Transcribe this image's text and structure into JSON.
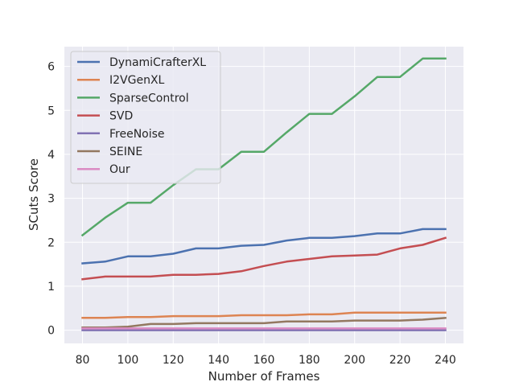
{
  "chart_data": {
    "type": "line",
    "title": "",
    "xlabel": "Number of Frames",
    "ylabel": "SCuts Score",
    "xlim": [
      72,
      248
    ],
    "ylim": [
      -0.3,
      6.45
    ],
    "grid": true,
    "legend_position": "top-left",
    "x_ticks": [
      80,
      100,
      120,
      140,
      160,
      180,
      200,
      220,
      240
    ],
    "y_ticks": [
      0,
      1,
      2,
      3,
      4,
      5,
      6
    ],
    "x": [
      80,
      90,
      100,
      110,
      120,
      130,
      140,
      150,
      160,
      170,
      180,
      190,
      200,
      210,
      220,
      230,
      240
    ],
    "series": [
      {
        "name": "DynamiCrafterXL",
        "color": "#4c72b0",
        "values": [
          1.52,
          1.56,
          1.68,
          1.68,
          1.74,
          1.86,
          1.86,
          1.92,
          1.94,
          2.04,
          2.1,
          2.1,
          2.14,
          2.2,
          2.2,
          2.3,
          2.3
        ]
      },
      {
        "name": "I2VGenXL",
        "color": "#dd8452",
        "values": [
          0.28,
          0.28,
          0.3,
          0.3,
          0.32,
          0.32,
          0.32,
          0.34,
          0.34,
          0.34,
          0.36,
          0.36,
          0.4,
          0.4,
          0.4,
          0.4,
          0.4
        ]
      },
      {
        "name": "SparseControl",
        "color": "#55a868",
        "values": [
          2.16,
          2.56,
          2.9,
          2.9,
          3.3,
          3.66,
          3.66,
          4.06,
          4.06,
          4.5,
          4.92,
          4.92,
          5.32,
          5.76,
          5.76,
          6.18,
          6.18
        ]
      },
      {
        "name": "SVD",
        "color": "#c44e52",
        "values": [
          1.16,
          1.22,
          1.22,
          1.22,
          1.26,
          1.26,
          1.28,
          1.34,
          1.46,
          1.56,
          1.62,
          1.68,
          1.7,
          1.72,
          1.86,
          1.94,
          2.1
        ]
      },
      {
        "name": "FreeNoise",
        "color": "#8172b3",
        "values": [
          0.0,
          0.0,
          0.0,
          0.0,
          0.0,
          0.0,
          0.0,
          0.0,
          0.0,
          0.0,
          0.0,
          0.0,
          0.0,
          0.0,
          0.0,
          0.0,
          0.0
        ]
      },
      {
        "name": "SEINE",
        "color": "#937860",
        "values": [
          0.06,
          0.06,
          0.08,
          0.14,
          0.14,
          0.16,
          0.16,
          0.16,
          0.16,
          0.2,
          0.2,
          0.2,
          0.22,
          0.22,
          0.22,
          0.24,
          0.28
        ]
      },
      {
        "name": "Our",
        "color": "#da8bc3",
        "values": [
          0.04,
          0.04,
          0.04,
          0.04,
          0.04,
          0.04,
          0.04,
          0.04,
          0.04,
          0.04,
          0.04,
          0.04,
          0.04,
          0.04,
          0.04,
          0.04,
          0.04
        ]
      }
    ]
  }
}
